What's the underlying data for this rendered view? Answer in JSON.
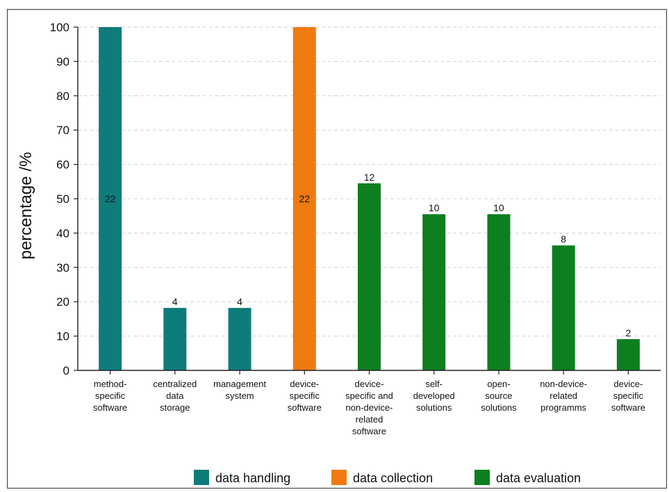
{
  "chart_data": {
    "type": "bar",
    "title": "",
    "xlabel": "",
    "ylabel": "percentage  /%",
    "ylim": [
      0,
      100
    ],
    "yticks": [
      0,
      10,
      20,
      30,
      40,
      50,
      60,
      70,
      80,
      90,
      100
    ],
    "grid": true,
    "legend_placement": "bottom",
    "series": [
      {
        "name": "data handling",
        "color": "#0e7c7b"
      },
      {
        "name": "data collection",
        "color": "#f07a10"
      },
      {
        "name": "data evaluation",
        "color": "#0d7f1f"
      }
    ],
    "bars": [
      {
        "category": [
          "method-",
          "specific",
          "software"
        ],
        "value": 100,
        "label": "22",
        "series": 0,
        "label_inside": true
      },
      {
        "category": [
          "centralized",
          "data",
          "storage"
        ],
        "value": 18.2,
        "label": "4",
        "series": 0,
        "label_inside": false
      },
      {
        "category": [
          "management",
          "system"
        ],
        "value": 18.2,
        "label": "4",
        "series": 0,
        "label_inside": false
      },
      {
        "category": [
          "device-",
          "specific",
          "software"
        ],
        "value": 100,
        "label": "22",
        "series": 1,
        "label_inside": true
      },
      {
        "category": [
          "device-",
          "specific and",
          "non-device-",
          "related",
          "software"
        ],
        "value": 54.5,
        "label": "12",
        "series": 2,
        "label_inside": false
      },
      {
        "category": [
          "self-",
          "developed",
          "solutions"
        ],
        "value": 45.5,
        "label": "10",
        "series": 2,
        "label_inside": false
      },
      {
        "category": [
          "open-",
          "source",
          "solutions"
        ],
        "value": 45.5,
        "label": "10",
        "series": 2,
        "label_inside": false
      },
      {
        "category": [
          "non-device-",
          "related",
          "programms"
        ],
        "value": 36.4,
        "label": "8",
        "series": 2,
        "label_inside": false
      },
      {
        "category": [
          "device-",
          "specific",
          "software"
        ],
        "value": 9.1,
        "label": "2",
        "series": 2,
        "label_inside": false
      }
    ]
  }
}
